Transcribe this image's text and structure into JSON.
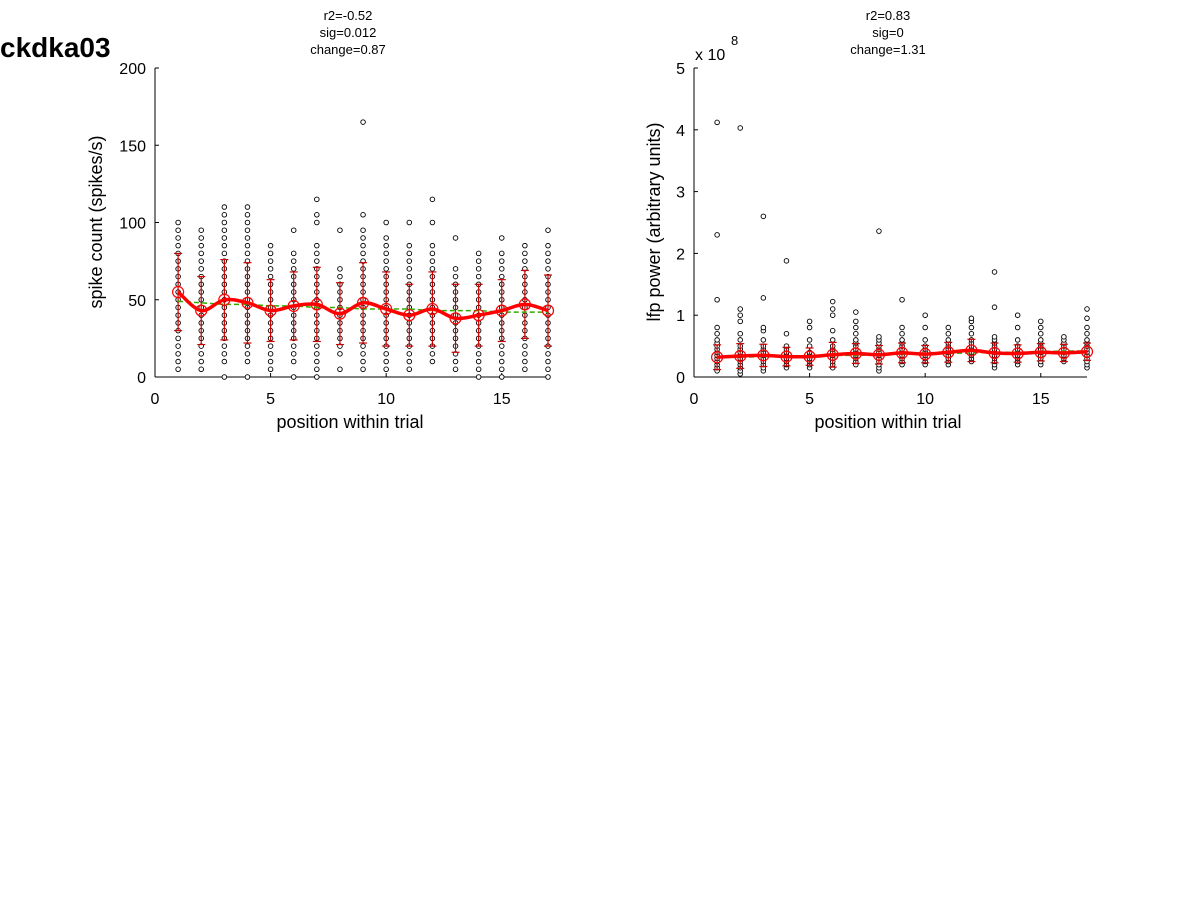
{
  "figure_title": "ckdka03",
  "colors": {
    "points": "#000000",
    "mean": "#ff0000",
    "error_bars": "#cc0000",
    "fit": "#33aa00"
  },
  "chart_data": [
    {
      "type": "scatter",
      "title": [
        "r2=-0.52",
        "sig=0.012",
        "change=0.87"
      ],
      "xlabel": "position within trial",
      "ylabel": "spike count (spikes/s)",
      "xlim": [
        0,
        17
      ],
      "ylim": [
        0,
        200
      ],
      "xticks": [
        0,
        5,
        10,
        15
      ],
      "yticks": [
        0,
        50,
        100,
        150,
        200
      ],
      "exponent_label": "",
      "x": [
        1,
        2,
        3,
        4,
        5,
        6,
        7,
        8,
        9,
        10,
        11,
        12,
        13,
        14,
        15,
        16,
        17
      ],
      "mean": [
        55,
        43,
        50,
        48,
        43,
        46,
        47,
        41,
        48,
        44,
        40,
        44,
        38,
        40,
        43,
        47,
        43
      ],
      "error": [
        25,
        22,
        26,
        26,
        20,
        22,
        24,
        20,
        26,
        24,
        20,
        24,
        22,
        20,
        20,
        22,
        23
      ],
      "fit": [
        49,
        48,
        47,
        47,
        46,
        46,
        45,
        45,
        44,
        44,
        44,
        43,
        43,
        43,
        42,
        42,
        42
      ],
      "points": [
        [
          5,
          10,
          15,
          20,
          25,
          30,
          35,
          40,
          45,
          50,
          55,
          60,
          65,
          70,
          75,
          80,
          85,
          90,
          95,
          100
        ],
        [
          5,
          10,
          15,
          20,
          25,
          30,
          35,
          40,
          45,
          50,
          55,
          60,
          65,
          70,
          75,
          80,
          85,
          90,
          95
        ],
        [
          0,
          10,
          15,
          20,
          25,
          30,
          35,
          40,
          45,
          50,
          55,
          60,
          65,
          70,
          75,
          80,
          85,
          90,
          95,
          100,
          105,
          110
        ],
        [
          0,
          10,
          15,
          20,
          25,
          30,
          35,
          40,
          45,
          50,
          55,
          60,
          65,
          70,
          75,
          80,
          85,
          90,
          95,
          100,
          105,
          110
        ],
        [
          5,
          10,
          15,
          20,
          25,
          30,
          35,
          40,
          45,
          50,
          55,
          60,
          65,
          70,
          75,
          80,
          85
        ],
        [
          0,
          10,
          15,
          20,
          25,
          30,
          35,
          40,
          45,
          50,
          55,
          60,
          65,
          70,
          75,
          80,
          95
        ],
        [
          0,
          5,
          10,
          15,
          20,
          25,
          30,
          35,
          40,
          45,
          50,
          55,
          60,
          65,
          70,
          75,
          80,
          85,
          100,
          105,
          115
        ],
        [
          5,
          15,
          20,
          25,
          30,
          35,
          40,
          45,
          50,
          55,
          60,
          65,
          70,
          95
        ],
        [
          5,
          10,
          15,
          20,
          25,
          30,
          35,
          40,
          45,
          50,
          55,
          60,
          65,
          70,
          75,
          80,
          85,
          90,
          95,
          105,
          165
        ],
        [
          5,
          10,
          15,
          20,
          25,
          30,
          35,
          40,
          45,
          50,
          55,
          60,
          65,
          70,
          75,
          80,
          85,
          90,
          100
        ],
        [
          5,
          10,
          15,
          20,
          25,
          30,
          35,
          40,
          45,
          50,
          55,
          60,
          65,
          70,
          75,
          80,
          85,
          100
        ],
        [
          10,
          15,
          20,
          25,
          30,
          35,
          40,
          45,
          50,
          55,
          60,
          65,
          70,
          75,
          80,
          85,
          100,
          115
        ],
        [
          5,
          10,
          15,
          20,
          25,
          30,
          35,
          40,
          45,
          50,
          55,
          60,
          65,
          70,
          90
        ],
        [
          0,
          5,
          10,
          15,
          20,
          25,
          30,
          35,
          40,
          45,
          50,
          55,
          60,
          65,
          70,
          75,
          80
        ],
        [
          0,
          5,
          10,
          15,
          20,
          25,
          30,
          35,
          40,
          45,
          50,
          55,
          60,
          65,
          70,
          75,
          80,
          90
        ],
        [
          5,
          10,
          15,
          20,
          25,
          30,
          35,
          40,
          45,
          50,
          55,
          60,
          65,
          70,
          75,
          80,
          85
        ],
        [
          0,
          5,
          10,
          15,
          20,
          25,
          30,
          35,
          40,
          45,
          50,
          55,
          60,
          65,
          70,
          75,
          80,
          85,
          95
        ]
      ]
    },
    {
      "type": "scatter",
      "title": [
        "r2=0.83",
        "sig=0",
        "change=1.31"
      ],
      "xlabel": "position within trial",
      "ylabel": "lfp power (arbitrary units)",
      "xlim": [
        0,
        17
      ],
      "ylim": [
        0,
        5
      ],
      "xticks": [
        0,
        5,
        10,
        15
      ],
      "yticks": [
        0,
        1,
        2,
        3,
        4,
        5
      ],
      "exponent_label": "x 10",
      "exponent_power": "8",
      "x": [
        1,
        2,
        3,
        4,
        5,
        6,
        7,
        8,
        9,
        10,
        11,
        12,
        13,
        14,
        15,
        16,
        17
      ],
      "mean": [
        0.32,
        0.34,
        0.35,
        0.33,
        0.33,
        0.36,
        0.38,
        0.36,
        0.39,
        0.37,
        0.4,
        0.43,
        0.39,
        0.38,
        0.4,
        0.39,
        0.41
      ],
      "error": [
        0.2,
        0.2,
        0.18,
        0.15,
        0.14,
        0.2,
        0.16,
        0.15,
        0.16,
        0.14,
        0.16,
        0.18,
        0.16,
        0.14,
        0.14,
        0.14,
        0.14
      ],
      "fit": [
        0.31,
        0.32,
        0.33,
        0.33,
        0.34,
        0.35,
        0.35,
        0.36,
        0.37,
        0.38,
        0.38,
        0.39,
        0.4,
        0.4,
        0.41,
        0.42,
        0.42
      ],
      "points": [
        [
          0.1,
          0.15,
          0.2,
          0.25,
          0.3,
          0.35,
          0.4,
          0.45,
          0.5,
          0.55,
          0.6,
          0.7,
          0.8,
          1.25,
          2.3,
          4.12
        ],
        [
          0.05,
          0.1,
          0.15,
          0.2,
          0.25,
          0.3,
          0.35,
          0.4,
          0.45,
          0.5,
          0.6,
          0.7,
          0.9,
          1.0,
          1.1,
          4.03
        ],
        [
          0.1,
          0.15,
          0.2,
          0.25,
          0.3,
          0.35,
          0.4,
          0.45,
          0.5,
          0.6,
          0.75,
          0.8,
          1.28,
          2.6
        ],
        [
          0.15,
          0.2,
          0.25,
          0.3,
          0.35,
          0.4,
          0.45,
          0.5,
          0.7,
          1.88
        ],
        [
          0.15,
          0.2,
          0.25,
          0.3,
          0.35,
          0.4,
          0.5,
          0.6,
          0.8,
          0.9
        ],
        [
          0.15,
          0.2,
          0.25,
          0.3,
          0.35,
          0.4,
          0.45,
          0.5,
          0.6,
          0.75,
          1.0,
          1.1,
          1.22
        ],
        [
          0.2,
          0.25,
          0.3,
          0.35,
          0.4,
          0.45,
          0.5,
          0.55,
          0.6,
          0.7,
          0.8,
          0.9,
          1.05
        ],
        [
          0.1,
          0.15,
          0.2,
          0.25,
          0.3,
          0.35,
          0.4,
          0.45,
          0.5,
          0.55,
          0.6,
          0.65,
          2.36
        ],
        [
          0.2,
          0.25,
          0.3,
          0.35,
          0.4,
          0.45,
          0.5,
          0.55,
          0.6,
          0.7,
          0.8,
          1.25
        ],
        [
          0.2,
          0.25,
          0.3,
          0.35,
          0.4,
          0.45,
          0.5,
          0.6,
          0.8,
          1.0
        ],
        [
          0.2,
          0.25,
          0.3,
          0.35,
          0.4,
          0.45,
          0.5,
          0.55,
          0.6,
          0.7,
          0.8
        ],
        [
          0.25,
          0.3,
          0.35,
          0.4,
          0.45,
          0.5,
          0.55,
          0.6,
          0.7,
          0.8,
          0.9,
          0.95
        ],
        [
          0.15,
          0.2,
          0.25,
          0.3,
          0.35,
          0.4,
          0.45,
          0.5,
          0.55,
          0.6,
          0.65,
          1.13,
          1.7
        ],
        [
          0.2,
          0.25,
          0.3,
          0.35,
          0.4,
          0.45,
          0.5,
          0.6,
          0.8,
          1.0
        ],
        [
          0.2,
          0.25,
          0.3,
          0.35,
          0.4,
          0.45,
          0.5,
          0.55,
          0.6,
          0.7,
          0.8,
          0.9
        ],
        [
          0.25,
          0.3,
          0.35,
          0.4,
          0.45,
          0.5,
          0.55,
          0.6,
          0.65
        ],
        [
          0.15,
          0.2,
          0.25,
          0.3,
          0.35,
          0.4,
          0.45,
          0.5,
          0.55,
          0.6,
          0.7,
          0.8,
          0.95,
          1.1
        ]
      ]
    }
  ]
}
